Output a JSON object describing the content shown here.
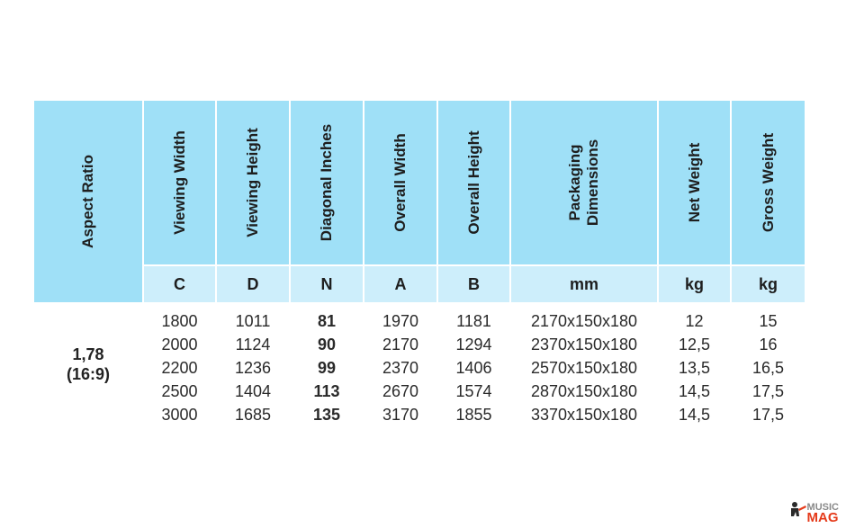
{
  "headers": {
    "aspect_ratio": "Aspect Ratio",
    "viewing_width": "Viewing Width",
    "viewing_height": "Viewing Height",
    "diagonal_inches": "Diagonal Inches",
    "overall_width": "Overall Width",
    "overall_height": "Overall Height",
    "packaging_dimensions_line1": "Packaging",
    "packaging_dimensions_line2": "Dimensions",
    "net_weight": "Net Weight",
    "gross_weight": "Gross Weight"
  },
  "units": {
    "viewing_width": "C",
    "viewing_height": "D",
    "diagonal_inches": "N",
    "overall_width": "A",
    "overall_height": "B",
    "packaging_dimensions": "mm",
    "net_weight": "kg",
    "gross_weight": "kg"
  },
  "aspect_ratio": {
    "value": "1,78",
    "format": "(16:9)"
  },
  "columns": {
    "viewing_width": [
      "1800",
      "2000",
      "2200",
      "2500",
      "3000"
    ],
    "viewing_height": [
      "1011",
      "1124",
      "1236",
      "1404",
      "1685"
    ],
    "diagonal_inches": [
      "81",
      "90",
      "99",
      "113",
      "135"
    ],
    "overall_width": [
      "1970",
      "2170",
      "2370",
      "2670",
      "3170"
    ],
    "overall_height": [
      "1181",
      "1294",
      "1406",
      "1574",
      "1855"
    ],
    "packaging_dimensions": [
      "2170x150x180",
      "2370x150x180",
      "2570x150x180",
      "2870x150x180",
      "3370x150x180"
    ],
    "net_weight": [
      "12",
      "12,5",
      "13,5",
      "14,5",
      "14,5"
    ],
    "gross_weight": [
      "15",
      "16",
      "16,5",
      "17,5",
      "17,5"
    ]
  },
  "watermark": {
    "line1": "MUSIC",
    "line2": "MAG"
  },
  "colors": {
    "header_bg": "#9fe0f7",
    "unit_bg": "#cdeefb",
    "watermark_accent": "#e53a1a"
  }
}
